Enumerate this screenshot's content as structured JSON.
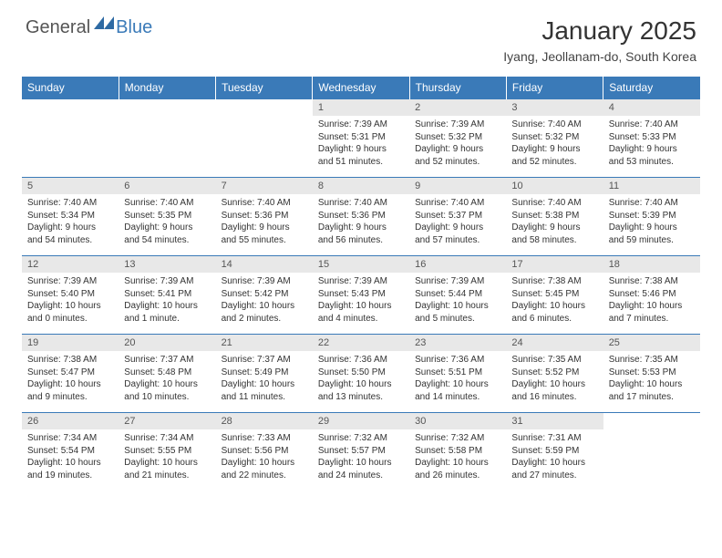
{
  "logo": {
    "text1": "General",
    "text2": "Blue",
    "mark_color": "#2e6aa3"
  },
  "header": {
    "month": "January 2025",
    "location": "Iyang, Jeollanam-do, South Korea"
  },
  "colors": {
    "header_bg": "#3a7ab8",
    "daynum_bg": "#e8e8e8",
    "rule": "#3a7ab8"
  },
  "daynames": [
    "Sunday",
    "Monday",
    "Tuesday",
    "Wednesday",
    "Thursday",
    "Friday",
    "Saturday"
  ],
  "weeks": [
    {
      "nums": [
        "",
        "",
        "",
        "1",
        "2",
        "3",
        "4"
      ],
      "info": [
        "",
        "",
        "",
        "Sunrise: 7:39 AM\nSunset: 5:31 PM\nDaylight: 9 hours\nand 51 minutes.",
        "Sunrise: 7:39 AM\nSunset: 5:32 PM\nDaylight: 9 hours\nand 52 minutes.",
        "Sunrise: 7:40 AM\nSunset: 5:32 PM\nDaylight: 9 hours\nand 52 minutes.",
        "Sunrise: 7:40 AM\nSunset: 5:33 PM\nDaylight: 9 hours\nand 53 minutes."
      ]
    },
    {
      "nums": [
        "5",
        "6",
        "7",
        "8",
        "9",
        "10",
        "11"
      ],
      "info": [
        "Sunrise: 7:40 AM\nSunset: 5:34 PM\nDaylight: 9 hours\nand 54 minutes.",
        "Sunrise: 7:40 AM\nSunset: 5:35 PM\nDaylight: 9 hours\nand 54 minutes.",
        "Sunrise: 7:40 AM\nSunset: 5:36 PM\nDaylight: 9 hours\nand 55 minutes.",
        "Sunrise: 7:40 AM\nSunset: 5:36 PM\nDaylight: 9 hours\nand 56 minutes.",
        "Sunrise: 7:40 AM\nSunset: 5:37 PM\nDaylight: 9 hours\nand 57 minutes.",
        "Sunrise: 7:40 AM\nSunset: 5:38 PM\nDaylight: 9 hours\nand 58 minutes.",
        "Sunrise: 7:40 AM\nSunset: 5:39 PM\nDaylight: 9 hours\nand 59 minutes."
      ]
    },
    {
      "nums": [
        "12",
        "13",
        "14",
        "15",
        "16",
        "17",
        "18"
      ],
      "info": [
        "Sunrise: 7:39 AM\nSunset: 5:40 PM\nDaylight: 10 hours\nand 0 minutes.",
        "Sunrise: 7:39 AM\nSunset: 5:41 PM\nDaylight: 10 hours\nand 1 minute.",
        "Sunrise: 7:39 AM\nSunset: 5:42 PM\nDaylight: 10 hours\nand 2 minutes.",
        "Sunrise: 7:39 AM\nSunset: 5:43 PM\nDaylight: 10 hours\nand 4 minutes.",
        "Sunrise: 7:39 AM\nSunset: 5:44 PM\nDaylight: 10 hours\nand 5 minutes.",
        "Sunrise: 7:38 AM\nSunset: 5:45 PM\nDaylight: 10 hours\nand 6 minutes.",
        "Sunrise: 7:38 AM\nSunset: 5:46 PM\nDaylight: 10 hours\nand 7 minutes."
      ]
    },
    {
      "nums": [
        "19",
        "20",
        "21",
        "22",
        "23",
        "24",
        "25"
      ],
      "info": [
        "Sunrise: 7:38 AM\nSunset: 5:47 PM\nDaylight: 10 hours\nand 9 minutes.",
        "Sunrise: 7:37 AM\nSunset: 5:48 PM\nDaylight: 10 hours\nand 10 minutes.",
        "Sunrise: 7:37 AM\nSunset: 5:49 PM\nDaylight: 10 hours\nand 11 minutes.",
        "Sunrise: 7:36 AM\nSunset: 5:50 PM\nDaylight: 10 hours\nand 13 minutes.",
        "Sunrise: 7:36 AM\nSunset: 5:51 PM\nDaylight: 10 hours\nand 14 minutes.",
        "Sunrise: 7:35 AM\nSunset: 5:52 PM\nDaylight: 10 hours\nand 16 minutes.",
        "Sunrise: 7:35 AM\nSunset: 5:53 PM\nDaylight: 10 hours\nand 17 minutes."
      ]
    },
    {
      "nums": [
        "26",
        "27",
        "28",
        "29",
        "30",
        "31",
        ""
      ],
      "info": [
        "Sunrise: 7:34 AM\nSunset: 5:54 PM\nDaylight: 10 hours\nand 19 minutes.",
        "Sunrise: 7:34 AM\nSunset: 5:55 PM\nDaylight: 10 hours\nand 21 minutes.",
        "Sunrise: 7:33 AM\nSunset: 5:56 PM\nDaylight: 10 hours\nand 22 minutes.",
        "Sunrise: 7:32 AM\nSunset: 5:57 PM\nDaylight: 10 hours\nand 24 minutes.",
        "Sunrise: 7:32 AM\nSunset: 5:58 PM\nDaylight: 10 hours\nand 26 minutes.",
        "Sunrise: 7:31 AM\nSunset: 5:59 PM\nDaylight: 10 hours\nand 27 minutes.",
        ""
      ]
    }
  ]
}
